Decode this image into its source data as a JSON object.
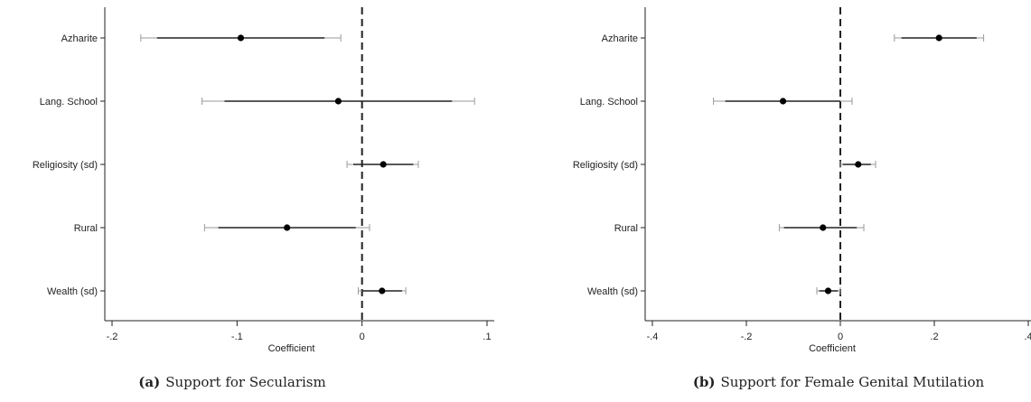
{
  "chart_data": [
    {
      "type": "coefficient_plot",
      "panel_label": "(a)",
      "caption": "Support for Secularism",
      "xlabel": "Coefficient",
      "ylabel": "",
      "xlim": [
        -0.2,
        0.1
      ],
      "xticks": [
        -0.2,
        -0.1,
        0,
        0.1
      ],
      "xtick_labels": [
        "-.2",
        "-.1",
        "0",
        ".1"
      ],
      "reference_line": 0,
      "grid": false,
      "categories": [
        "Azharite",
        "Lang. School",
        "Religiosity (sd)",
        "Rural",
        "Wealth (sd)"
      ],
      "estimates": [
        -0.097,
        -0.019,
        0.017,
        -0.06,
        0.016
      ],
      "ci_inner": [
        [
          -0.164,
          -0.03
        ],
        [
          -0.11,
          0.072
        ],
        [
          -0.007,
          0.041
        ],
        [
          -0.115,
          -0.005
        ],
        [
          0.0,
          0.032
        ]
      ],
      "ci_outer": [
        [
          -0.177,
          -0.017
        ],
        [
          -0.128,
          0.09
        ],
        [
          -0.012,
          0.045
        ],
        [
          -0.126,
          0.006
        ],
        [
          -0.003,
          0.035
        ]
      ]
    },
    {
      "type": "coefficient_plot",
      "panel_label": "(b)",
      "caption": "Support for Female Genital Mutilation",
      "xlabel": "Coefficient",
      "ylabel": "",
      "xlim": [
        -0.4,
        0.4
      ],
      "xticks": [
        -0.4,
        -0.2,
        0,
        0.2,
        0.4
      ],
      "xtick_labels": [
        "-.4",
        "-.2",
        "0",
        ".2",
        ".4"
      ],
      "reference_line": 0,
      "grid": false,
      "categories": [
        "Azharite",
        "Lang. School",
        "Religiosity (sd)",
        "Rural",
        "Wealth (sd)"
      ],
      "estimates": [
        0.21,
        -0.122,
        0.038,
        -0.037,
        -0.026
      ],
      "ci_inner": [
        [
          0.13,
          0.29
        ],
        [
          -0.245,
          0.0
        ],
        [
          0.005,
          0.065
        ],
        [
          -0.12,
          0.035
        ],
        [
          -0.045,
          -0.005
        ]
      ],
      "ci_outer": [
        [
          0.115,
          0.305
        ],
        [
          -0.27,
          0.025
        ],
        [
          0.0,
          0.075
        ],
        [
          -0.13,
          0.05
        ],
        [
          -0.05,
          0.0
        ]
      ]
    }
  ]
}
